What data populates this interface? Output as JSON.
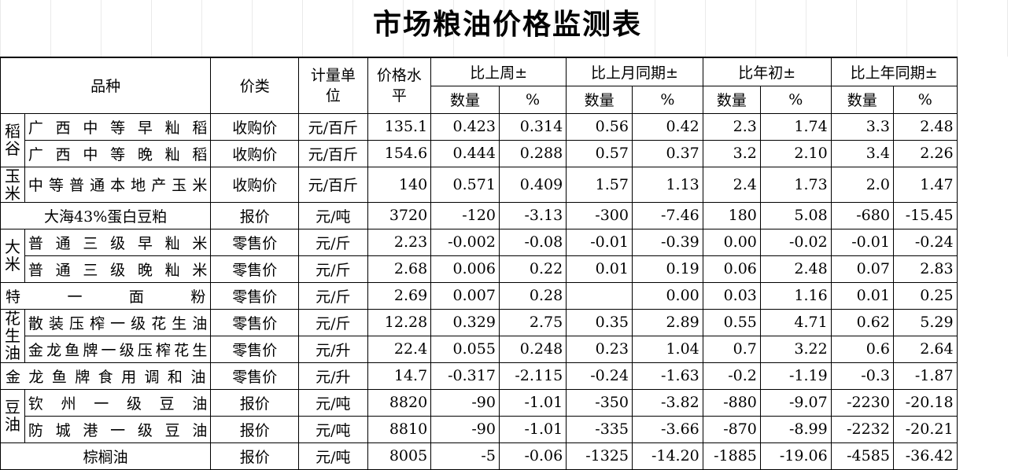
{
  "title": "市场粮油价格监测表",
  "headers": {
    "variety": "品种",
    "price_type": "价类",
    "unit": "计量单位",
    "price_level": "价格水平",
    "vs_last_week": "比上周±",
    "vs_last_month": "比上月同期±",
    "vs_year_start": "比年初±",
    "vs_last_year": "比上年同期±",
    "qty": "数量",
    "pct": "%"
  },
  "categories": {
    "paddy": "稻谷",
    "corn": "玉米",
    "rice": "大米",
    "peanut_oil": "花生油",
    "soy_oil": "豆油"
  },
  "rows": [
    {
      "name": "广西中等早籼稻",
      "type": "收购价",
      "unit": "元/百斤",
      "price": "135.1",
      "w_q": "0.423",
      "w_p": "0.314",
      "m_q": "0.56",
      "m_p": "0.42",
      "y_q": "2.3",
      "y_p": "1.74",
      "ly_q": "3.3",
      "ly_p": "2.48"
    },
    {
      "name": "广西中等晚籼稻",
      "type": "收购价",
      "unit": "元/百斤",
      "price": "154.6",
      "w_q": "0.444",
      "w_p": "0.288",
      "m_q": "0.57",
      "m_p": "0.37",
      "y_q": "3.2",
      "y_p": "2.10",
      "ly_q": "3.4",
      "ly_p": "2.26"
    },
    {
      "name": "中等普通本地产玉米",
      "type": "收购价",
      "unit": "元/百斤",
      "price": "140",
      "w_q": "0.571",
      "w_p": "0.409",
      "m_q": "1.57",
      "m_p": "1.13",
      "y_q": "2.4",
      "y_p": "1.73",
      "ly_q": "2.0",
      "ly_p": "1.47"
    },
    {
      "name": "大海43%蛋白豆粕",
      "type": "报价",
      "unit": "元/吨",
      "price": "3720",
      "w_q": "-120",
      "w_p": "-3.13",
      "m_q": "-300",
      "m_p": "-7.46",
      "y_q": "180",
      "y_p": "5.08",
      "ly_q": "-680",
      "ly_p": "-15.45"
    },
    {
      "name": "普通三级早籼米",
      "type": "零售价",
      "unit": "元/斤",
      "price": "2.23",
      "w_q": "-0.002",
      "w_p": "-0.08",
      "m_q": "-0.01",
      "m_p": "-0.39",
      "y_q": "0.00",
      "y_p": "-0.02",
      "ly_q": "-0.01",
      "ly_p": "-0.24"
    },
    {
      "name": "普通三级晚籼米",
      "type": "零售价",
      "unit": "元/斤",
      "price": "2.68",
      "w_q": "0.006",
      "w_p": "0.22",
      "m_q": "0.01",
      "m_p": "0.19",
      "y_q": "0.06",
      "y_p": "2.48",
      "ly_q": "0.07",
      "ly_p": "2.83"
    },
    {
      "name": "特一面粉",
      "type": "零售价",
      "unit": "元/斤",
      "price": "2.69",
      "w_q": "0.007",
      "w_p": "0.28",
      "m_q": "",
      "m_p": "0.00",
      "y_q": "0.03",
      "y_p": "1.16",
      "ly_q": "0.01",
      "ly_p": "0.25"
    },
    {
      "name": "散装压榨一级花生油",
      "type": "零售价",
      "unit": "元/斤",
      "price": "12.28",
      "w_q": "0.329",
      "w_p": "2.75",
      "m_q": "0.35",
      "m_p": "2.89",
      "y_q": "0.55",
      "y_p": "4.71",
      "ly_q": "0.62",
      "ly_p": "5.29"
    },
    {
      "name": "金龙鱼牌一级压榨花生",
      "type": "零售价",
      "unit": "元/升",
      "price": "22.4",
      "w_q": "0.055",
      "w_p": "0.248",
      "m_q": "0.23",
      "m_p": "1.04",
      "y_q": "0.7",
      "y_p": "3.22",
      "ly_q": "0.6",
      "ly_p": "2.64"
    },
    {
      "name": "金龙鱼牌食用调和油",
      "type": "零售价",
      "unit": "元/升",
      "price": "14.7",
      "w_q": "-0.317",
      "w_p": "-2.115",
      "m_q": "-0.24",
      "m_p": "-1.63",
      "y_q": "-0.2",
      "y_p": "-1.19",
      "ly_q": "-0.3",
      "ly_p": "-1.87"
    },
    {
      "name": "钦州一级豆油",
      "type": "报价",
      "unit": "元/吨",
      "price": "8820",
      "w_q": "-90",
      "w_p": "-1.01",
      "m_q": "-350",
      "m_p": "-3.82",
      "y_q": "-880",
      "y_p": "-9.07",
      "ly_q": "-2230",
      "ly_p": "-20.18"
    },
    {
      "name": "防城港一级豆油",
      "type": "报价",
      "unit": "元/吨",
      "price": "8810",
      "w_q": "-90",
      "w_p": "-1.01",
      "m_q": "-335",
      "m_p": "-3.66",
      "y_q": "-870",
      "y_p": "-8.99",
      "ly_q": "-2232",
      "ly_p": "-20.21"
    },
    {
      "name": "棕榈油",
      "type": "报价",
      "unit": "元/吨",
      "price": "8005",
      "w_q": "-5",
      "w_p": "-0.06",
      "m_q": "-1325",
      "m_p": "-14.20",
      "y_q": "-1885",
      "y_p": "-19.06",
      "ly_q": "-4585",
      "ly_p": "-36.42"
    }
  ]
}
